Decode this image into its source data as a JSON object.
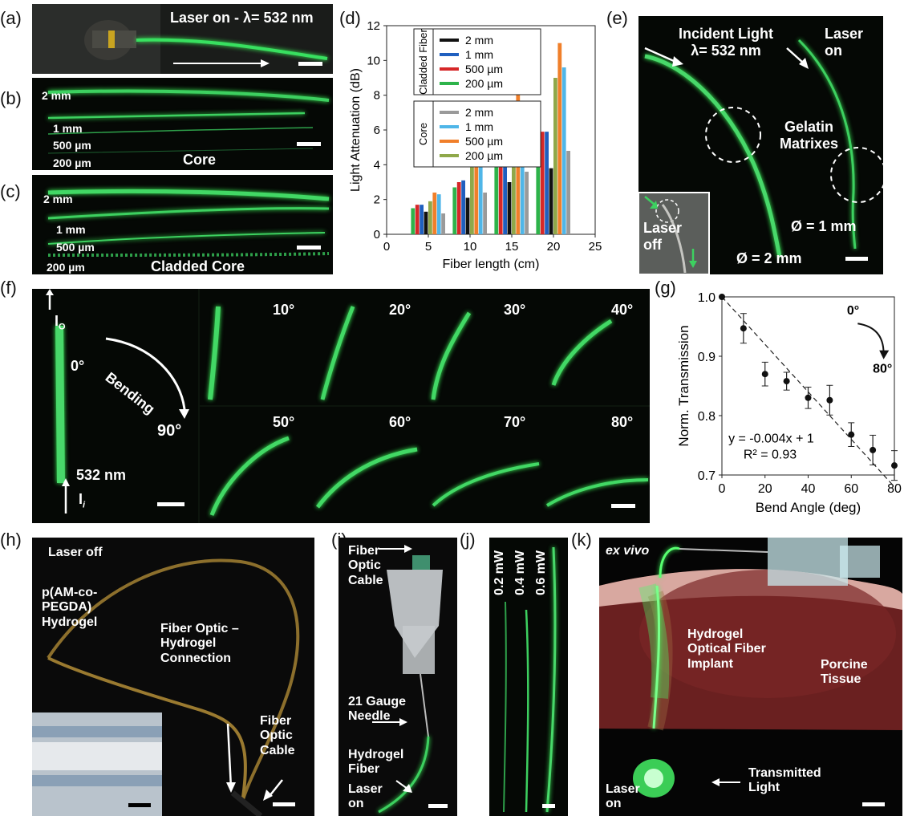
{
  "panels": {
    "a": {
      "label": "(a)",
      "caption": "Laser on - λ= 532 nm"
    },
    "b": {
      "label": "(b)",
      "sizes": [
        "2 mm",
        "1 mm",
        "500 µm",
        "200 µm"
      ],
      "caption": "Core"
    },
    "c": {
      "label": "(c)",
      "sizes": [
        "2 mm",
        "1 mm",
        "500 µm",
        "200 µm"
      ],
      "caption": "Cladded Core"
    },
    "d": {
      "label": "(d)"
    },
    "e": {
      "label": "(e)",
      "incident": "Incident Light\nλ= 532 nm",
      "laser_on": "Laser\non",
      "gelatin": "Gelatin\nMatrixes",
      "laser_off": "Laser\noff",
      "d1": "Ø = 1 mm",
      "d2": "Ø = 2 mm"
    },
    "f": {
      "label": "(f)",
      "io": "I",
      "io_sub": "O",
      "ii": "I",
      "ii_sub": "i",
      "zero": "0°",
      "bending": "Bending",
      "ninety": "90°",
      "wavelength": "532 nm",
      "angles": [
        "10°",
        "20°",
        "30°",
        "40°",
        "50°",
        "60°",
        "70°",
        "80°"
      ]
    },
    "g": {
      "label": "(g)",
      "arrow_start": "0°",
      "arrow_end": "80°",
      "equation": "y = -0.004x + 1",
      "r2": "R² = 0.93"
    },
    "h": {
      "label": "(h)",
      "laser_off": "Laser off",
      "hydrogel": "p(AM-co-\nPEGDA)\nHydrogel",
      "connection": "Fiber Optic –\nHydrogel\nConnection",
      "cable": "Fiber\nOptic\nCable"
    },
    "i": {
      "label": "(i)",
      "cable": "Fiber\nOptic\nCable",
      "needle": "21 Gauge\nNeedle",
      "fiber": "Hydrogel\nFiber",
      "laser_on": "Laser\non"
    },
    "j": {
      "label": "(j)",
      "powers": [
        "0.2 mW",
        "0.4 mW",
        "0.6 mW"
      ]
    },
    "k": {
      "label": "(k)",
      "exvivo": "ex vivo",
      "implant": "Hydrogel\nOptical Fiber\nImplant",
      "tissue": "Porcine\nTissue",
      "laser_on": "Laser\non",
      "transmitted": "Transmitted\nLight"
    }
  },
  "chart_data": [
    {
      "type": "bar",
      "panel": "d",
      "xlabel": "Fiber length (cm)",
      "ylabel": "Light Attenuation (dB)",
      "xlim": [
        0,
        25
      ],
      "ylim": [
        0,
        12
      ],
      "xticks": [
        0,
        5,
        10,
        15,
        20,
        25
      ],
      "yticks": [
        0,
        2,
        4,
        6,
        8,
        10,
        12
      ],
      "categories": [
        5,
        10,
        15,
        20
      ],
      "legend_groups": [
        {
          "title": "Cladded Fiber",
          "entries": [
            "2 mm",
            "1 mm",
            "500 µm",
            "200 µm"
          ]
        },
        {
          "title": "Core",
          "entries": [
            "2 mm",
            "1 mm",
            "500 µm",
            "200 µm"
          ]
        }
      ],
      "series": [
        {
          "group": "Cladded Fiber",
          "name": "200 µm",
          "color": "#2db34a",
          "values": [
            1.5,
            2.7,
            4.0,
            5.3
          ]
        },
        {
          "group": "Cladded Fiber",
          "name": "500 µm",
          "color": "#d62728",
          "values": [
            1.7,
            3.0,
            4.5,
            5.9
          ]
        },
        {
          "group": "Cladded Fiber",
          "name": "1 mm",
          "color": "#1f5fbf",
          "values": [
            1.7,
            3.1,
            4.5,
            5.9
          ]
        },
        {
          "group": "Cladded Fiber",
          "name": "2 mm",
          "color": "#111111",
          "values": [
            1.3,
            2.1,
            3.0,
            3.8
          ]
        },
        {
          "group": "Core",
          "name": "200 µm",
          "color": "#8fa84a",
          "values": [
            1.9,
            4.1,
            6.6,
            9.0
          ]
        },
        {
          "group": "Core",
          "name": "500 µm",
          "color": "#f07f2a",
          "values": [
            2.4,
            5.2,
            8.1,
            11.0
          ]
        },
        {
          "group": "Core",
          "name": "1 mm",
          "color": "#4fb6e8",
          "values": [
            2.3,
            4.7,
            7.2,
            9.6
          ]
        },
        {
          "group": "Core",
          "name": "2 mm",
          "color": "#9a9a9a",
          "values": [
            1.2,
            2.4,
            3.6,
            4.8
          ]
        }
      ]
    },
    {
      "type": "scatter",
      "panel": "g",
      "xlabel": "Bend Angle (deg)",
      "ylabel": "Norm. Transmission",
      "xlim": [
        0,
        80
      ],
      "ylim": [
        0.7,
        1.0
      ],
      "xticks": [
        0,
        20,
        40,
        60,
        80
      ],
      "yticks": [
        0.7,
        0.8,
        0.9,
        1.0
      ],
      "x": [
        0,
        10,
        20,
        30,
        40,
        50,
        60,
        70,
        80
      ],
      "y": [
        1.0,
        0.947,
        0.87,
        0.858,
        0.83,
        0.826,
        0.768,
        0.742,
        0.716
      ],
      "error": [
        0,
        0.025,
        0.02,
        0.015,
        0.018,
        0.025,
        0.02,
        0.025,
        0.025
      ],
      "fit": {
        "slope": -0.004,
        "intercept": 1
      }
    }
  ]
}
